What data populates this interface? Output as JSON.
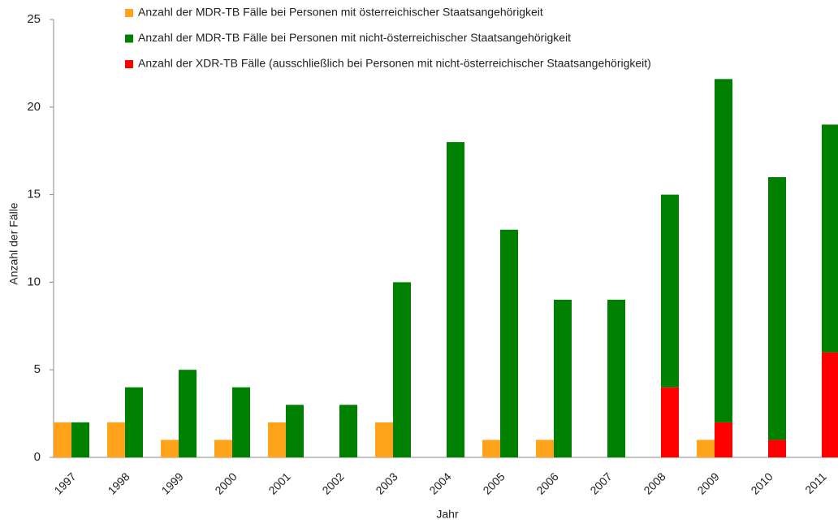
{
  "chart_data": {
    "type": "bar",
    "xlabel": "Jahr",
    "ylabel": "Anzahl der Fälle",
    "categories": [
      "1997",
      "1998",
      "1999",
      "2000",
      "2001",
      "2002",
      "2003",
      "2004",
      "2005",
      "2006",
      "2007",
      "2008",
      "2009",
      "2010",
      "2011"
    ],
    "series": [
      {
        "name": "Anzahl der MDR-TB Fälle bei Personen mit österreichischer Staatsangehörigkeit",
        "color": "#ffa31a",
        "values": [
          2,
          2,
          1,
          1,
          2,
          0,
          2,
          0,
          1,
          1,
          0,
          0,
          1,
          0,
          0
        ]
      },
      {
        "name": "Anzahl der MDR-TB Fälle bei Personen mit nicht-österreichischer Staatsangehörigkeit",
        "color": "#008000",
        "values": [
          2,
          4,
          5,
          4,
          3,
          3,
          10,
          18,
          13,
          9,
          9,
          11,
          19.6,
          15,
          13
        ]
      },
      {
        "name": "Anzahl der XDR-TB Fälle (ausschließlich bei Personen mit nicht-österreichischer Staatsangehörigkeit)",
        "color": "#ff0000",
        "values": [
          0,
          0,
          0,
          0,
          0,
          0,
          0,
          0,
          0,
          0,
          0,
          4,
          2,
          1,
          6
        ]
      }
    ],
    "ylim": [
      0,
      25
    ],
    "yticks": [
      0,
      5,
      10,
      15,
      20,
      25
    ]
  }
}
